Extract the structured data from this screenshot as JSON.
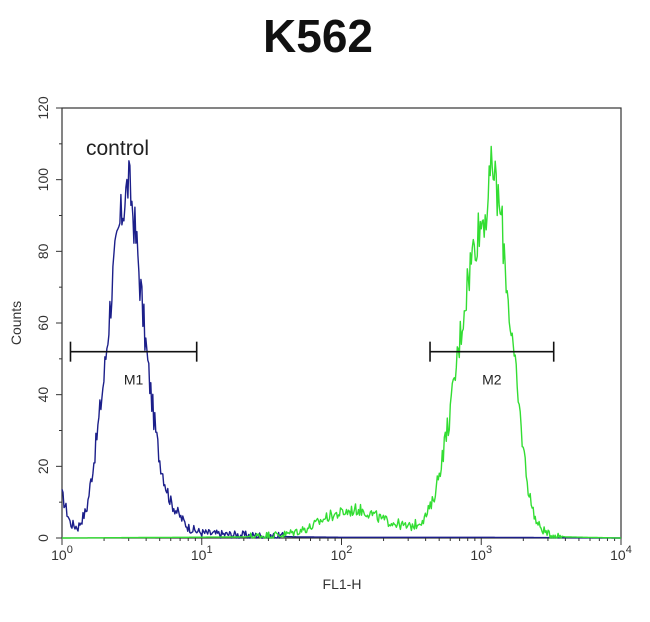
{
  "chart_data": {
    "type": "line",
    "title": "K562",
    "xlabel": "FL1-H",
    "ylabel": "Counts",
    "xscale": "log",
    "xlim": [
      1,
      10000
    ],
    "ylim": [
      0,
      120
    ],
    "x_ticks": [
      {
        "base": "10",
        "exp": "0",
        "value": 1
      },
      {
        "base": "10",
        "exp": "1",
        "value": 10
      },
      {
        "base": "10",
        "exp": "2",
        "value": 100
      },
      {
        "base": "10",
        "exp": "3",
        "value": 1000
      },
      {
        "base": "10",
        "exp": "4",
        "value": 10000
      }
    ],
    "y_ticks": [
      "0",
      "20",
      "40",
      "60",
      "80",
      "100",
      "120"
    ],
    "annotation": "control",
    "grid": false,
    "colors": {
      "control": "#1c1f8a",
      "sample": "#33dd33",
      "frame": "#333333"
    },
    "series": [
      {
        "key": "control",
        "x": [
          1.0,
          1.15,
          1.3,
          1.5,
          1.7,
          2.0,
          2.3,
          2.6,
          2.8,
          3.0,
          3.2,
          3.5,
          3.8,
          4.2,
          4.6,
          5.0,
          5.5,
          6.0,
          7.0,
          8.0,
          9.0,
          10,
          12,
          15,
          20,
          30,
          50,
          100,
          1000,
          10000
        ],
        "y": [
          12,
          4,
          3,
          8,
          22,
          45,
          72,
          88,
          94,
          100,
          92,
          78,
          62,
          45,
          32,
          22,
          15,
          10,
          6,
          3,
          2,
          1.5,
          1.2,
          1,
          0.8,
          0.5,
          0.3,
          0.2,
          0.2,
          0
        ]
      },
      {
        "key": "sample",
        "x": [
          1,
          20,
          40,
          60,
          80,
          100,
          130,
          160,
          200,
          250,
          300,
          350,
          400,
          450,
          500,
          600,
          700,
          800,
          900,
          1000,
          1100,
          1200,
          1300,
          1400,
          1600,
          1800,
          2000,
          2200,
          2500,
          3000,
          4000,
          10000
        ],
        "y": [
          0,
          0.3,
          1,
          3,
          6,
          7,
          8,
          7,
          5,
          4,
          3,
          4,
          6,
          10,
          18,
          35,
          55,
          72,
          83,
          88,
          92,
          105,
          96,
          88,
          62,
          42,
          25,
          12,
          4,
          1,
          0.3,
          0
        ]
      }
    ],
    "markers": [
      {
        "label": "M1",
        "x_range": [
          1.15,
          9.2
        ],
        "y": 52
      },
      {
        "label": "M2",
        "x_range": [
          430,
          3300
        ],
        "y": 52
      }
    ]
  }
}
